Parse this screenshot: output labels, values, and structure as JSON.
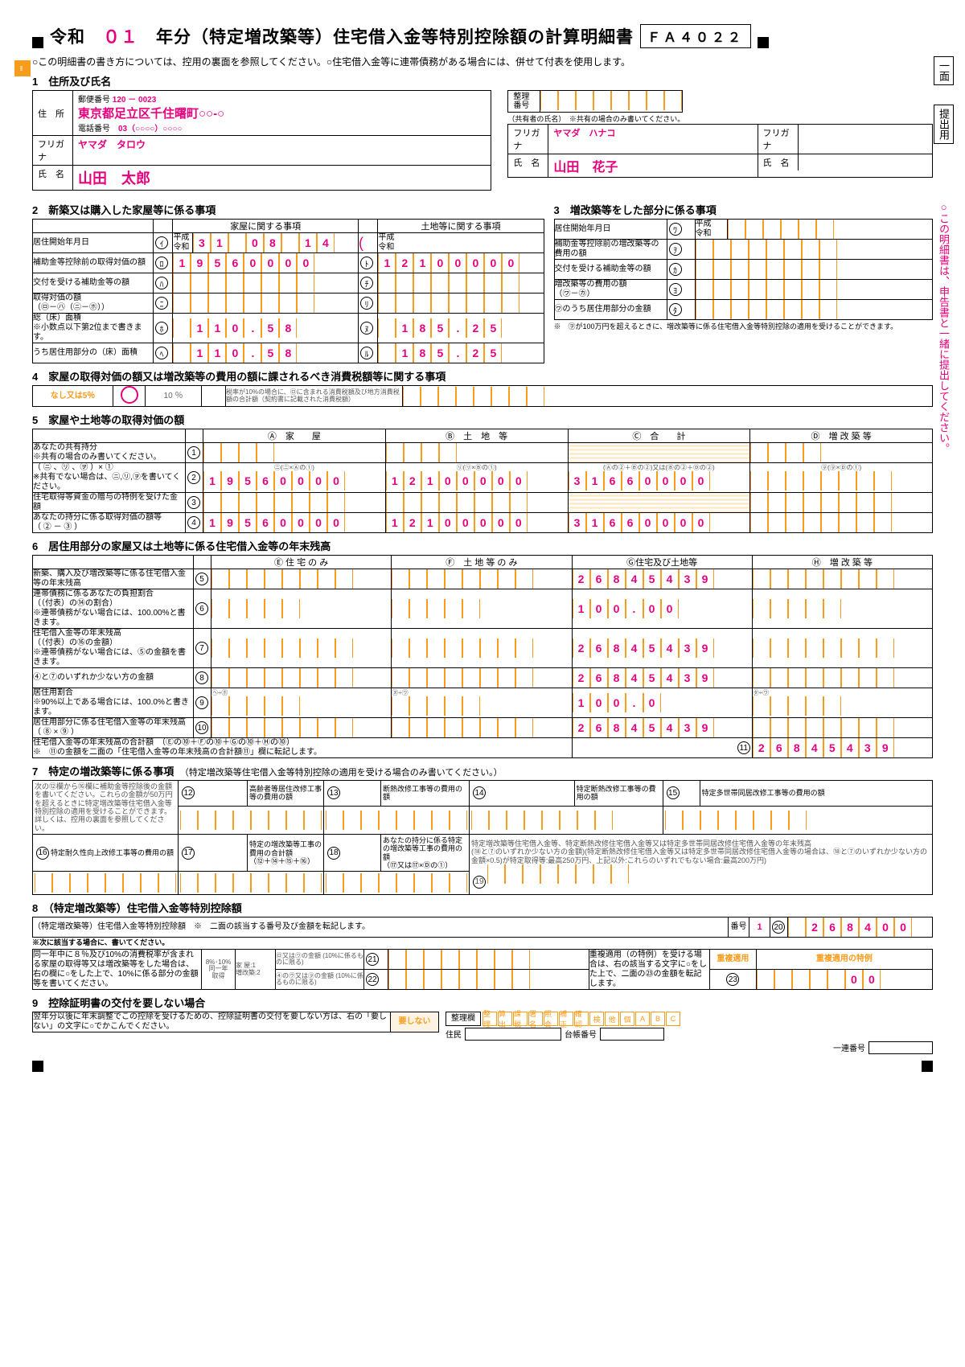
{
  "header": {
    "era": "令和",
    "year": "０１",
    "title": "年分（特定増改築等）住宅借入金等特別控除額の計算明細書",
    "code": "ＦＡ４０２２"
  },
  "note": "○この明細書の書き方については、控用の裏面を参照してください。○住宅借入金等に連帯債務がある場合には、併せて付表を使用します。",
  "s1": {
    "t": "1　住所及び氏名",
    "post_l": "郵便番号",
    "post": "120 － 0023",
    "addr_l": "住　所",
    "addr": "東京都足立区千住曙町○○-○",
    "tel_l": "電話番号",
    "tel": "03（○○○○）○○○○",
    "kana_l": "フリガナ",
    "kana": "ヤマダ　タロウ",
    "name_l": "氏　名",
    "name": "山田　太郎",
    "seiri": "整理番号",
    "co_note": "（共有者の氏名）　※共有の場合のみ書いてください。",
    "co_kana": "ヤマダ　ハナコ",
    "co_name": "山田　花子"
  },
  "s2": {
    "t": "2　新築又は購入した家屋等に係る事項",
    "h1": "家屋に関する事項",
    "h2": "土地等に関する事項",
    "r1": "居住開始年月日",
    "era": "平成\n令和",
    "d": [
      "3",
      "1",
      "",
      "0",
      "8",
      "",
      "1",
      "4"
    ],
    "r2": "補助金等控除前の取得対価の額",
    "v2a": [
      "1",
      "9",
      "5",
      "6",
      "0",
      "0",
      "0",
      "0"
    ],
    "v2b": [
      "1",
      "2",
      "1",
      "0",
      "0",
      "0",
      "0",
      "0"
    ],
    "r3": "交付を受ける補助金等の額",
    "r4": "取得対価の額\n（㋺－㋩（㋥－㋭））",
    "r5": "総（床）面積\n※小数点以下第2位まで書きます。",
    "v5a": [
      "",
      "1",
      "1",
      "0",
      ".",
      "5",
      "8"
    ],
    "v5b": [
      "",
      "1",
      "8",
      "5",
      ".",
      "2",
      "5"
    ],
    "r6": "うち居住用部分の（床）面積",
    "v6a": [
      "",
      "1",
      "1",
      "0",
      ".",
      "5",
      "8"
    ],
    "v6b": [
      "",
      "1",
      "8",
      "5",
      ".",
      "2",
      "5"
    ]
  },
  "s3": {
    "t": "3　増改築等をした部分に係る事項",
    "r1": "居住開始年月日",
    "r2": "補助金等控除前の増改築等の費用の額",
    "r3": "交付を受ける補助金等の額",
    "r4": "増改築等の費用の額\n（㋻－㋕）",
    "r5": "㋻のうち居住用部分の金額",
    "note": "※　㋾が100万円を超えるときに、増改築等に係る住宅借入金等特別控除の適用を受けることができます。"
  },
  "s4": {
    "t": "4　家屋の取得対価の額又は増改築等の費用の額に課されるべき消費税額等に関する事項",
    "opt1": "なし又は5％",
    "opt2": "10 ％",
    "note": "税率が10%の場合に、㋺に含まれる消費税額及び地方消費税額の合計額（契約書に記載された消費税額）"
  },
  "s5": {
    "t": "5　家屋や土地等の取得対価の額",
    "hA": "Ⓐ　家　　屋",
    "hB": "Ⓑ　土　地　等",
    "hC": "Ⓒ　合　　計",
    "hD": "Ⓓ　増 改 築 等",
    "r1": "あなたの共有持分\n※共有の場合のみ書いてください。",
    "r2": "（ ㋥ 、㋷ 、㋾ ）× ①\n※共有でない場合は、㋥,㋷,㋾を書いてください。",
    "sub": "㋥（㋥ × Ⓐの①）　　㋷（㋷ × Ⓑの①）　　(Ⓐの②＋Ⓑの②)又は(Ⓑの②＋Ⓓの②)　　㋾（㋾ × Ⓓの①）",
    "v2a": [
      "1",
      "9",
      "5",
      "6",
      "0",
      "0",
      "0",
      "0"
    ],
    "v2b": [
      "1",
      "2",
      "1",
      "0",
      "0",
      "0",
      "0",
      "0"
    ],
    "v2c": [
      "3",
      "1",
      "6",
      "6",
      "0",
      "0",
      "0",
      "0"
    ],
    "r3": "住宅取得等資金の贈与の特例を受けた金額",
    "r4": "あなたの持分に係る取得対価の額等\n（ ② － ③ ）",
    "v4a": [
      "1",
      "9",
      "5",
      "6",
      "0",
      "0",
      "0",
      "0"
    ],
    "v4b": [
      "1",
      "2",
      "1",
      "0",
      "0",
      "0",
      "0",
      "0"
    ],
    "v4c": [
      "3",
      "1",
      "6",
      "6",
      "0",
      "0",
      "0",
      "0"
    ]
  },
  "s6": {
    "t": "6　居住用部分の家屋又は土地等に係る住宅借入金等の年末残高",
    "hE": "Ⓔ 住 宅 の み",
    "hF": "Ⓕ　土 地 等 の み",
    "hG": "Ⓖ住宅及び土地等",
    "hH": "Ⓗ　増 改 築 等",
    "r5": "新築、購入及び増改築等に係る住宅借入金等の年末残高",
    "v5g": [
      "2",
      "6",
      "8",
      "4",
      "5",
      "4",
      "3",
      "9"
    ],
    "r6": "連帯債務に係るあなたの負担割合\n（（付表）の⑭の割合）\n※連帯債務がない場合には、100.00%と書きます。",
    "v6g": [
      "1",
      "0",
      "0",
      ".",
      "0",
      "0"
    ],
    "r7": "住宅借入金等の年末残高\n（（付表）の⑯の金額）\n※連帯債務がない場合には、⑤の金額を書きます。",
    "v7g": [
      "2",
      "6",
      "8",
      "4",
      "5",
      "4",
      "3",
      "9"
    ],
    "r8": "④と⑦のいずれか少ない方の金額",
    "v8g": [
      "2",
      "6",
      "8",
      "4",
      "5",
      "4",
      "3",
      "9"
    ],
    "r9": "居住用割合\n※90%以上である場合には、100.0%と書きます。",
    "sub9": "㋬÷㋭　　㋦÷㋻　　　　㋟÷㋻",
    "v9g": [
      "1",
      "0",
      "0",
      ".",
      "0"
    ],
    "r10": "居住用部分に係る住宅借入金等の年末残高\n（ ⑧ × ⑨ ）",
    "v10g": [
      "2",
      "6",
      "8",
      "4",
      "5",
      "4",
      "3",
      "9"
    ],
    "r11": "住宅借入金等の年末残高の合計額　（Ⓔの⑩＋Ⓕの⑩＋Ⓖの⑩＋Ⓗの⑩）\n※　⑪の金額を二面の「住宅借入金等の年末残高の合計額⑪」欄に転記します。",
    "v11": [
      "2",
      "6",
      "8",
      "4",
      "5",
      "4",
      "3",
      "9"
    ]
  },
  "s7": {
    "t": "7　特定の増改築等に係る事項",
    "sub": "（特定増改築等住宅借入金等特別控除の適用を受ける場合のみ書いてください。）",
    "note": "次の⑫欄から⑯欄に補助金等控除後の金額を書いてください。これらの金額が50万円を超えるときに特定増改築等住宅借入金等特別控除の適用を受けることができます。詳しくは、控用の裏面を参照してください。",
    "l12": "高齢者等居住改修工事等の費用の額",
    "l13": "断熱改修工事等の費用の額",
    "l14": "特定断熱改修工事等の費用の額",
    "l15": "特定多世帯同居改修工事等の費用の額",
    "l16": "特定耐久性向上改修工事等の費用の額",
    "l17": "特定の増改築等工事の費用の合計額\n（⑫＋⑭＋⑮＋⑯）",
    "l18": "あなたの持分に係る特定の増改築等工事の費用の額\n（⑰又は⑰×Ⓓの①）",
    "l19": "特定増改築等住宅借入金等、特定断熱改修住宅借入金等又は特定多世帯同居改修住宅借入金等の年末残高\n(⑱と⑦のいずれか少ない方の金額)(特定断熱改修住宅借入金等又は特定多世帯同居改修住宅借入金等の場合は、⑱と⑦のいずれか少ない方の金額×0.5)が特定取得等:最高250万円、上記以外:これらのいずれでもない場合:最高200万円)"
  },
  "s8": {
    "t": "8　（特定増改築等）住宅借入金等特別控除額",
    "r": "（特定増改築等）住宅借入金等特別控除額　※　二面の該当する番号及び金額を転記します。",
    "bn": "番号",
    "bv": "1",
    "v": [
      "",
      "2",
      "6",
      "8",
      "4",
      "0",
      "0"
    ],
    "note": "※次に該当する場合に、書いてください。",
    "r21": "同一年中に８％及び10%の消費税率が含まれる家屋の取得等又は増改築等をした場合は、右の欄に○をした上で、10%に係る部分の金額等を書いてください。",
    "c21a": "8%･10%\n同一年\n取得",
    "c21b": "家 屋:1\n増改築:2",
    "c21c": "㋺又は㋻の金額\n(10%に係るものに限る)",
    "c22": "④の㋒又は㋾の金額\n(10%に係るものに限る)",
    "r23a": "重複適用（の特例）を受ける場合は、右の該当する文字に○をした上で、二面の㉓の金額を転記します。",
    "r23b": "重複適用",
    "r23c": "重複適用の特例",
    "v23": [
      "",
      "",
      "",
      "",
      "",
      "0",
      "0"
    ]
  },
  "s9": {
    "t": "9　控除証明書の交付を要しない場合",
    "txt": "翌年分以後に年末調整でこの控除を受けるための、控除証明書の交付を要しない方は、右の「要しない」の文字に○でかこんでください。",
    "btn": "要しない",
    "seiri": "整理欄",
    "stamps": [
      "整理",
      "算出",
      "課税",
      "署名",
      "照合",
      "補正",
      "確認",
      "検",
      "他",
      "個",
      "A",
      "B",
      "C"
    ],
    "l1": "住民",
    "l2": "台帳番号",
    "l3": "一連番号"
  },
  "side": {
    "a": "一面",
    "b": "提出用",
    "c": "○この明細書は、申告書と一緒に提出してください。"
  }
}
